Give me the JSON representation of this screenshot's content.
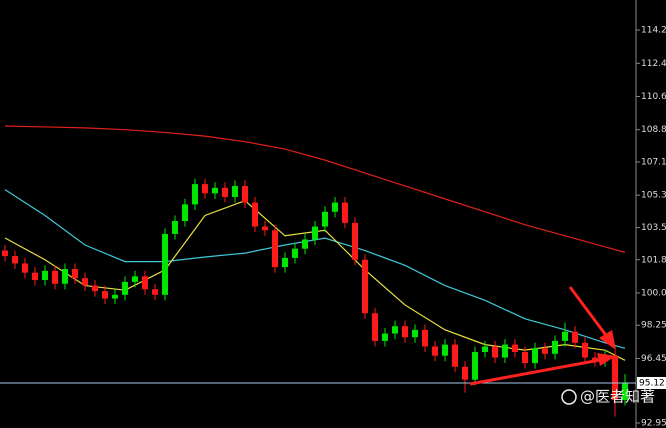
{
  "chart_data": {
    "type": "candlestick",
    "up_color": "#00e600",
    "down_color": "#ff1a1a",
    "candles": [
      [
        102.3,
        102.6,
        101.7,
        102.0
      ],
      [
        102.0,
        102.3,
        101.3,
        101.6
      ],
      [
        101.6,
        101.9,
        100.8,
        101.1
      ],
      [
        101.1,
        101.4,
        100.4,
        100.7
      ],
      [
        100.7,
        101.5,
        100.4,
        101.2
      ],
      [
        101.2,
        101.5,
        100.2,
        100.5
      ],
      [
        100.5,
        101.6,
        100.2,
        101.3
      ],
      [
        101.3,
        101.6,
        100.5,
        100.8
      ],
      [
        100.8,
        101.1,
        100.1,
        100.4
      ],
      [
        100.4,
        100.7,
        99.8,
        100.1
      ],
      [
        100.1,
        100.4,
        99.4,
        99.7
      ],
      [
        99.7,
        100.2,
        99.4,
        99.9
      ],
      [
        99.9,
        100.9,
        99.6,
        100.6
      ],
      [
        100.6,
        101.2,
        100.3,
        100.9
      ],
      [
        100.9,
        101.2,
        99.9,
        100.2
      ],
      [
        100.2,
        100.5,
        99.6,
        99.9
      ],
      [
        99.9,
        103.5,
        99.6,
        103.2
      ],
      [
        103.2,
        104.2,
        102.9,
        103.9
      ],
      [
        103.9,
        105.1,
        103.6,
        104.8
      ],
      [
        104.8,
        106.2,
        104.5,
        105.9
      ],
      [
        105.9,
        106.2,
        105.1,
        105.4
      ],
      [
        105.4,
        106.0,
        105.1,
        105.7
      ],
      [
        105.7,
        106.0,
        104.9,
        105.2
      ],
      [
        105.2,
        106.1,
        104.9,
        105.8
      ],
      [
        105.8,
        106.1,
        104.6,
        104.9
      ],
      [
        104.9,
        105.2,
        103.3,
        103.6
      ],
      [
        103.6,
        103.9,
        103.1,
        103.4
      ],
      [
        103.4,
        103.7,
        101.1,
        101.4
      ],
      [
        101.4,
        102.2,
        101.1,
        101.9
      ],
      [
        101.9,
        102.7,
        101.6,
        102.4
      ],
      [
        102.4,
        103.2,
        102.1,
        102.9
      ],
      [
        102.9,
        103.9,
        102.6,
        103.6
      ],
      [
        103.6,
        104.7,
        103.3,
        104.4
      ],
      [
        104.4,
        105.2,
        104.1,
        104.9
      ],
      [
        104.9,
        105.2,
        103.5,
        103.8
      ],
      [
        103.8,
        104.1,
        101.5,
        101.8
      ],
      [
        101.8,
        102.1,
        98.6,
        98.9
      ],
      [
        98.9,
        99.2,
        97.1,
        97.4
      ],
      [
        97.4,
        98.1,
        97.1,
        97.8
      ],
      [
        97.8,
        98.5,
        97.5,
        98.2
      ],
      [
        98.2,
        98.5,
        97.3,
        97.6
      ],
      [
        97.6,
        98.3,
        97.3,
        98.0
      ],
      [
        98.0,
        98.3,
        96.8,
        97.1
      ],
      [
        97.1,
        97.4,
        96.3,
        96.6
      ],
      [
        96.6,
        97.5,
        96.3,
        97.2
      ],
      [
        97.2,
        97.5,
        95.7,
        96.0
      ],
      [
        96.0,
        96.3,
        94.6,
        95.3
      ],
      [
        95.3,
        97.1,
        95.0,
        96.8
      ],
      [
        96.8,
        97.4,
        96.5,
        97.1
      ],
      [
        97.1,
        97.4,
        96.2,
        96.5
      ],
      [
        96.5,
        97.5,
        96.2,
        97.2
      ],
      [
        97.2,
        97.5,
        96.5,
        96.8
      ],
      [
        96.8,
        97.1,
        95.9,
        96.2
      ],
      [
        96.2,
        97.3,
        95.9,
        97.0
      ],
      [
        97.0,
        97.3,
        96.4,
        96.7
      ],
      [
        96.7,
        97.7,
        96.4,
        97.4
      ],
      [
        97.4,
        98.4,
        97.1,
        97.9
      ],
      [
        97.9,
        98.2,
        97.0,
        97.3
      ],
      [
        97.3,
        97.6,
        96.2,
        96.5
      ],
      [
        96.5,
        96.8,
        96.0,
        96.3
      ],
      [
        96.3,
        96.9,
        96.0,
        96.6
      ],
      [
        96.6,
        96.9,
        93.3,
        94.2
      ],
      [
        94.2,
        95.6,
        93.9,
        95.12
      ]
    ],
    "ma_index": [
      0,
      4,
      8,
      12,
      16,
      20,
      24,
      28,
      32,
      36,
      40,
      44,
      48,
      52,
      56,
      60,
      62
    ],
    "lines": [
      {
        "color": "#e0201a",
        "values": [
          109.05,
          109.0,
          108.95,
          108.85,
          108.7,
          108.5,
          108.2,
          107.8,
          107.2,
          106.5,
          105.8,
          105.1,
          104.4,
          103.7,
          103.1,
          102.5,
          102.2
        ]
      },
      {
        "color": "#3fc8d8",
        "values": [
          105.6,
          104.2,
          102.6,
          101.7,
          101.7,
          101.95,
          102.16,
          102.6,
          102.97,
          102.3,
          101.5,
          100.4,
          99.6,
          98.6,
          98.0,
          97.3,
          97.0
        ]
      },
      {
        "color": "#e8e040",
        "values": [
          102.98,
          101.8,
          100.4,
          100.15,
          101.25,
          104.2,
          105.0,
          103.1,
          103.4,
          101.25,
          99.35,
          98.0,
          97.2,
          96.9,
          97.2,
          96.9,
          96.35
        ]
      }
    ],
    "ylim": [
      92.68,
      115.88
    ],
    "yticks": [
      114.25,
      112.45,
      110.65,
      108.85,
      {
        "value": 107.1,
        "label": "107.10"
      },
      {
        "value": 105.3,
        "label": "105.30"
      },
      103.55,
      {
        "value": 101.8,
        "label": "101.80"
      },
      {
        "value": 100,
        "label": "100.00"
      },
      98.25,
      96.45,
      92.95
    ],
    "watermark": "@医者知著"
  }
}
